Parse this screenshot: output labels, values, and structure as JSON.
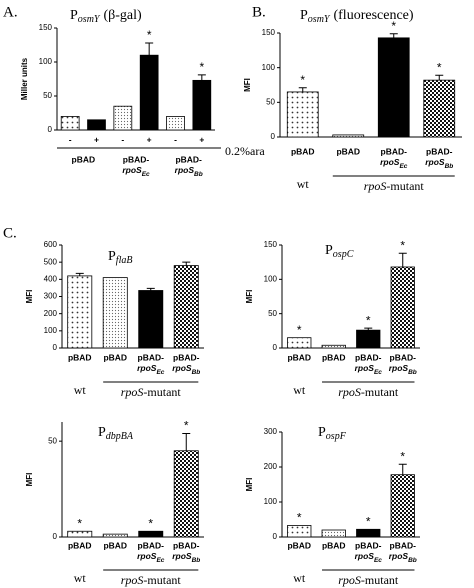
{
  "panel_labels": [
    "A.",
    "B.",
    "C."
  ],
  "chart_data": [
    {
      "type": "bar",
      "title": "P",
      "title_sub": "osmY",
      "title_suffix": "(β-gal)",
      "y_label": "Miller units",
      "categories": [
        "-",
        "+",
        "-",
        "+",
        "-",
        "+"
      ],
      "x_label": "0.2%ara",
      "groups": [
        "pBAD",
        "pBAD-",
        "pBAD-"
      ],
      "group_italic": [
        null,
        "rpoS",
        "rpoS"
      ],
      "group_sub": [
        null,
        "Ec",
        "Bb"
      ],
      "values": [
        20,
        15,
        35,
        110,
        20,
        73
      ],
      "errors": [
        null,
        null,
        null,
        18,
        null,
        8
      ],
      "annotations": [
        null,
        null,
        null,
        "*",
        null,
        "*"
      ],
      "patterns": [
        "dots",
        "solid",
        "fine-dots",
        "solid",
        "fine-dots",
        "solid"
      ],
      "ylim": [
        0,
        150
      ],
      "yticks": [
        0,
        50,
        100,
        150
      ]
    },
    {
      "type": "bar",
      "title": "P",
      "title_sub": "osmY",
      "title_suffix": "(fluorescence)",
      "y_label": "MFI",
      "categories": [
        "pBAD",
        "pBAD",
        "pBAD-",
        "pBAD-"
      ],
      "category_italic": [
        null,
        null,
        "rpoS",
        "rpoS"
      ],
      "category_sub": [
        null,
        null,
        "Ec",
        "Bb"
      ],
      "groups": [
        "wt",
        "rpoS"
      ],
      "group_suffix": [
        null,
        "-mutant"
      ],
      "values": [
        65,
        3,
        143,
        82
      ],
      "errors": [
        6,
        null,
        6,
        7
      ],
      "annotations": [
        "*",
        null,
        "*",
        "*"
      ],
      "patterns": [
        "dots",
        "fine-dots",
        "solid",
        "checker"
      ],
      "ylim": [
        0,
        150
      ],
      "yticks": [
        0,
        50,
        100,
        150
      ]
    },
    {
      "type": "bar",
      "title": "P",
      "title_sub": "flaB",
      "y_label": "MFI",
      "categories": [
        "pBAD",
        "pBAD",
        "pBAD-",
        "pBAD-"
      ],
      "category_italic": [
        null,
        null,
        "rpoS",
        "rpoS"
      ],
      "category_sub": [
        null,
        null,
        "Ec",
        "Bb"
      ],
      "groups": [
        "wt",
        "rpoS"
      ],
      "group_suffix": [
        null,
        "-mutant"
      ],
      "values": [
        420,
        410,
        335,
        480
      ],
      "errors": [
        15,
        null,
        12,
        20
      ],
      "annotations": [
        null,
        null,
        null,
        null
      ],
      "patterns": [
        "dots",
        "fine-dots",
        "solid",
        "checker"
      ],
      "ylim": [
        0,
        600
      ],
      "yticks": [
        0,
        100,
        200,
        300,
        400,
        500,
        600
      ]
    },
    {
      "type": "bar",
      "title": "P",
      "title_sub": "ospC",
      "y_label": "MFI",
      "categories": [
        "pBAD",
        "pBAD",
        "pBAD-",
        "pBAD-"
      ],
      "category_italic": [
        null,
        null,
        "rpoS",
        "rpoS"
      ],
      "category_sub": [
        null,
        null,
        "Ec",
        "Bb"
      ],
      "groups": [
        "wt",
        "rpoS"
      ],
      "group_suffix": [
        null,
        "-mutant"
      ],
      "values": [
        15,
        4,
        26,
        118
      ],
      "errors": [
        null,
        null,
        3,
        20
      ],
      "annotations": [
        "*",
        null,
        "*",
        "*"
      ],
      "patterns": [
        "dots",
        "fine-dots",
        "solid",
        "checker"
      ],
      "ylim": [
        0,
        150
      ],
      "yticks": [
        0,
        50,
        100,
        150
      ]
    },
    {
      "type": "bar",
      "title": "P",
      "title_sub": "dbpBA",
      "y_label": "MFI",
      "categories": [
        "pBAD",
        "pBAD",
        "pBAD-",
        "pBAD-"
      ],
      "category_italic": [
        null,
        null,
        "rpoS",
        "rpoS"
      ],
      "category_sub": [
        null,
        null,
        "Ec",
        "Bb"
      ],
      "groups": [
        "wt",
        "rpoS"
      ],
      "group_suffix": [
        null,
        "-mutant"
      ],
      "values": [
        3,
        1.5,
        3,
        45
      ],
      "errors": [
        null,
        null,
        null,
        9
      ],
      "annotations": [
        "*",
        null,
        "*",
        "*"
      ],
      "patterns": [
        "dots",
        "fine-dots",
        "solid",
        "checker"
      ],
      "ylim": [
        0,
        60
      ],
      "yticks": [
        0,
        50
      ]
    },
    {
      "type": "bar",
      "title": "P",
      "title_sub": "ospF",
      "y_label": "MFI",
      "categories": [
        "pBAD",
        "pBAD",
        "pBAD-",
        "pBAD-"
      ],
      "category_italic": [
        null,
        null,
        "rpoS",
        "rpoS"
      ],
      "category_sub": [
        null,
        null,
        "Ec",
        "Bb"
      ],
      "groups": [
        "wt",
        "rpoS"
      ],
      "group_suffix": [
        null,
        "-mutant"
      ],
      "values": [
        33,
        20,
        22,
        178
      ],
      "errors": [
        null,
        null,
        null,
        30
      ],
      "annotations": [
        "*",
        null,
        "*",
        "*"
      ],
      "patterns": [
        "dots",
        "fine-dots",
        "solid",
        "checker"
      ],
      "ylim": [
        0,
        300
      ],
      "yticks": [
        0,
        100,
        200,
        300
      ]
    }
  ]
}
